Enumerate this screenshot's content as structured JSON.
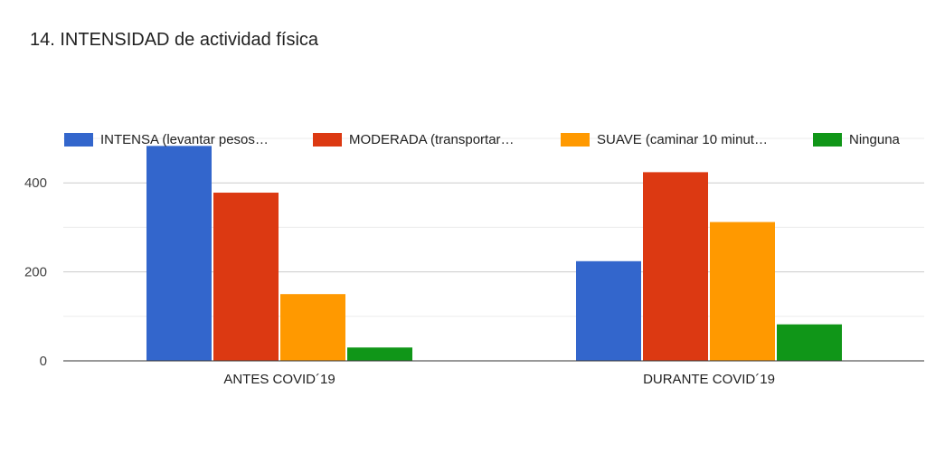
{
  "chart_data": {
    "type": "bar",
    "title": "14. INTENSIDAD de actividad física",
    "categories": [
      "ANTES COVID´19",
      "DURANTE COVID´19"
    ],
    "series": [
      {
        "name": "INTENSA (levantar pesos…",
        "color": "#3366cc",
        "values": [
          483,
          224
        ]
      },
      {
        "name": "MODERADA (transportar…",
        "color": "#dc3912",
        "values": [
          378,
          424
        ]
      },
      {
        "name": "SUAVE (caminar 10 minut…",
        "color": "#ff9900",
        "values": [
          150,
          312
        ]
      },
      {
        "name": "Ninguna",
        "color": "#109618",
        "values": [
          30,
          82
        ]
      }
    ],
    "yticks": [
      0,
      200,
      400
    ],
    "ylim": [
      0,
      500
    ],
    "grid": true,
    "legend_position": "top"
  }
}
